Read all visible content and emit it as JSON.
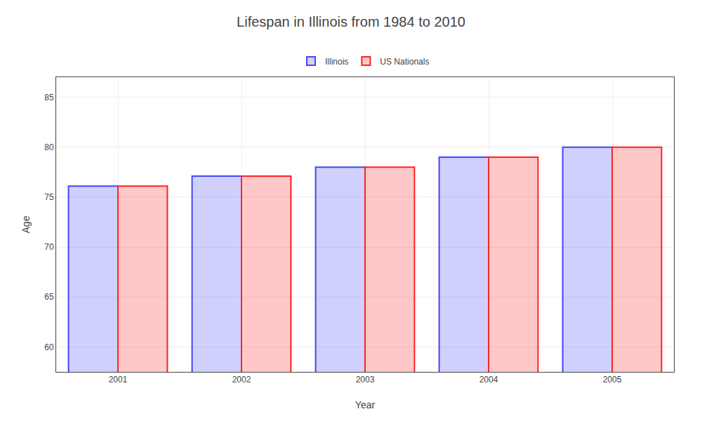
{
  "chart_data": {
    "type": "bar",
    "title": "Lifespan in Illinois from 1984 to 2010",
    "x_label": "Year",
    "y_label": "Age",
    "categories": [
      "2001",
      "2002",
      "2003",
      "2004",
      "2005"
    ],
    "series": [
      {
        "name": "Illinois",
        "color": "#4444ff",
        "values": [
          76.1,
          77.1,
          78.0,
          79.0,
          80.0
        ]
      },
      {
        "name": "US Nationals",
        "color": "#ff2222",
        "values": [
          76.1,
          77.1,
          78.0,
          79.0,
          80.0
        ]
      }
    ],
    "ylim": [
      57.5,
      87
    ],
    "yticks": [
      60,
      65,
      70,
      75,
      80,
      85
    ],
    "grid": true,
    "legend": "top"
  }
}
